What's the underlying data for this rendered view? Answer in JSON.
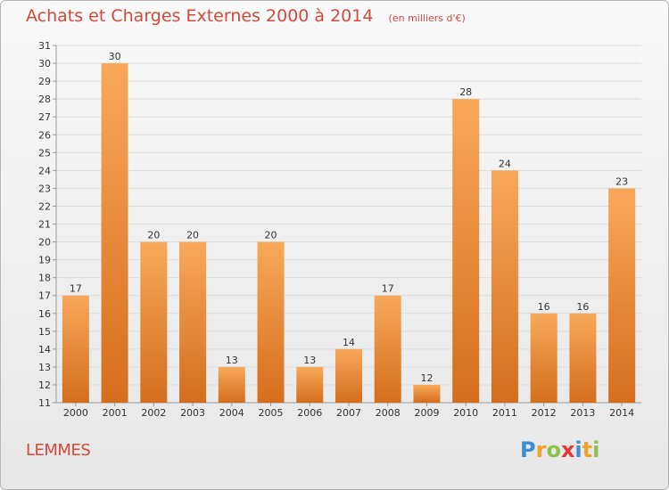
{
  "chart_data": {
    "type": "bar",
    "title": "Achats et Charges Externes 2000 à 2014",
    "subtitle": "(en milliers d'€)",
    "categories": [
      "2000",
      "2001",
      "2002",
      "2003",
      "2004",
      "2005",
      "2006",
      "2007",
      "2008",
      "2009",
      "2010",
      "2011",
      "2012",
      "2013",
      "2014"
    ],
    "values": [
      17,
      30,
      20,
      20,
      13,
      20,
      13,
      14,
      17,
      12,
      28,
      24,
      16,
      16,
      23
    ],
    "ylim": [
      11,
      31
    ],
    "yticks": [
      11,
      12,
      13,
      14,
      15,
      16,
      17,
      18,
      19,
      20,
      21,
      22,
      23,
      24,
      25,
      26,
      27,
      28,
      29,
      30,
      31
    ],
    "xlabel": "",
    "ylabel": "",
    "grid": true,
    "bar_color_light": "#f8a85a",
    "bar_color_dark": "#d46e1c"
  },
  "footer": {
    "place": "LEMMES",
    "brand_letters": [
      {
        "ch": "P",
        "color": "#3a8fd6"
      },
      {
        "ch": "r",
        "color": "#f0a22a"
      },
      {
        "ch": "o",
        "color": "#8bc34a"
      },
      {
        "ch": "x",
        "color": "#e53935"
      },
      {
        "ch": "i",
        "color": "#3a8fd6"
      },
      {
        "ch": "t",
        "color": "#f0a22a"
      },
      {
        "ch": "i",
        "color": "#8bc34a"
      }
    ]
  },
  "colors": {
    "title": "#d14a3a",
    "background_top": "#f9f9f9",
    "background_bottom": "#e7e7e7"
  }
}
